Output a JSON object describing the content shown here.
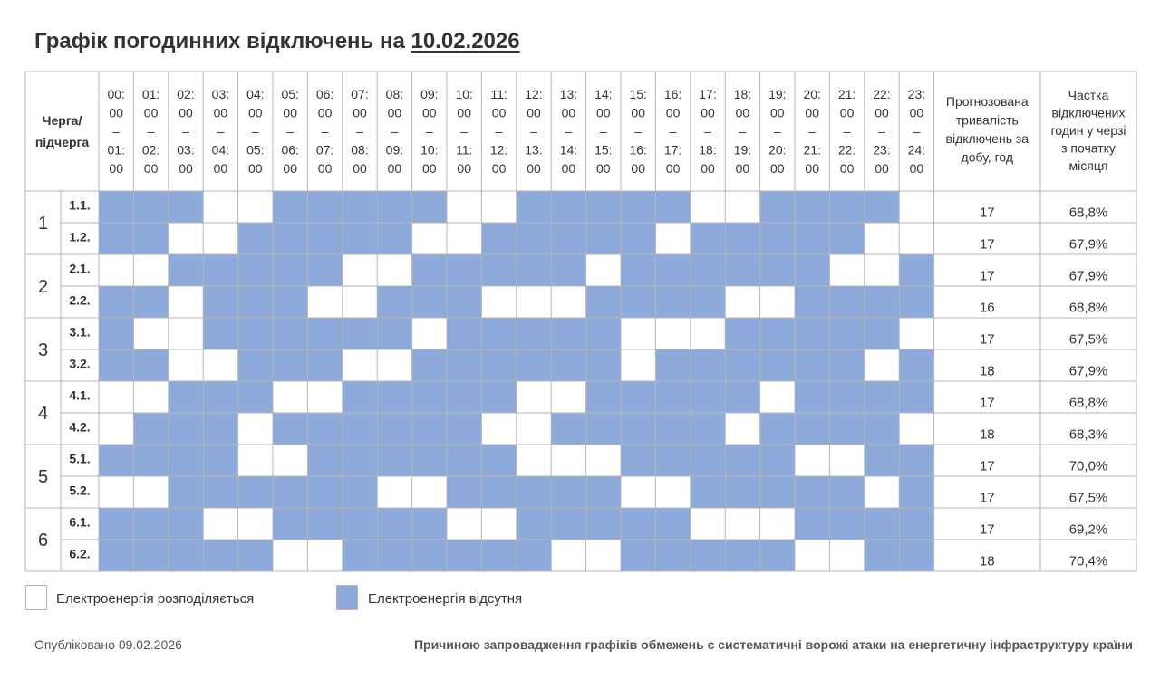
{
  "title": {
    "prefix": "Графік погодинних відключень на",
    "date": "10.02.2026"
  },
  "colors": {
    "off": "#8eaadb",
    "on": "#ffffff",
    "border": "#b5b5b5"
  },
  "chart_data": {
    "type": "table",
    "header": {
      "queue": [
        "Черга/",
        "підчерга"
      ],
      "duration": [
        "Прогнозована",
        "тривалість",
        "відключень за",
        "добу, год"
      ],
      "share": [
        "Частка",
        "відключених",
        "годин у черзі",
        "з початку",
        "місяця"
      ]
    },
    "hours": [
      [
        "00:",
        "00",
        "–",
        "01:",
        "00"
      ],
      [
        "01:",
        "00",
        "–",
        "02:",
        "00"
      ],
      [
        "02:",
        "00",
        "–",
        "03:",
        "00"
      ],
      [
        "03:",
        "00",
        "–",
        "04:",
        "00"
      ],
      [
        "04:",
        "00",
        "–",
        "05:",
        "00"
      ],
      [
        "05:",
        "00",
        "–",
        "06:",
        "00"
      ],
      [
        "06:",
        "00",
        "–",
        "07:",
        "00"
      ],
      [
        "07:",
        "00",
        "–",
        "08:",
        "00"
      ],
      [
        "08:",
        "00",
        "–",
        "09:",
        "00"
      ],
      [
        "09:",
        "00",
        "–",
        "10:",
        "00"
      ],
      [
        "10:",
        "00",
        "–",
        "11:",
        "00"
      ],
      [
        "11:",
        "00",
        "–",
        "12:",
        "00"
      ],
      [
        "12:",
        "00",
        "–",
        "13:",
        "00"
      ],
      [
        "13:",
        "00",
        "–",
        "14:",
        "00"
      ],
      [
        "14:",
        "00",
        "–",
        "15:",
        "00"
      ],
      [
        "15:",
        "00",
        "–",
        "16:",
        "00"
      ],
      [
        "16:",
        "00",
        "–",
        "17:",
        "00"
      ],
      [
        "17:",
        "00",
        "–",
        "18:",
        "00"
      ],
      [
        "18:",
        "00",
        "–",
        "19:",
        "00"
      ],
      [
        "19:",
        "00",
        "–",
        "20:",
        "00"
      ],
      [
        "20:",
        "00",
        "–",
        "21:",
        "00"
      ],
      [
        "21:",
        "00",
        "–",
        "22:",
        "00"
      ],
      [
        "22:",
        "00",
        "–",
        "23:",
        "00"
      ],
      [
        "23:",
        "00",
        "–",
        "24:",
        "00"
      ]
    ],
    "groups": [
      {
        "label": "1",
        "rows": [
          {
            "sub": "1.1.",
            "hours": [
              1,
              1,
              1,
              0,
              0,
              1,
              1,
              1,
              1,
              1,
              0,
              0,
              1,
              1,
              1,
              1,
              1,
              0,
              0,
              1,
              1,
              1,
              1,
              0
            ],
            "duration": "17",
            "share": "68,8%"
          },
          {
            "sub": "1.2.",
            "hours": [
              1,
              1,
              0,
              0,
              1,
              1,
              1,
              1,
              1,
              0,
              0,
              1,
              1,
              1,
              1,
              1,
              0,
              1,
              1,
              1,
              1,
              1,
              0,
              0
            ],
            "duration": "17",
            "share": "67,9%"
          }
        ]
      },
      {
        "label": "2",
        "rows": [
          {
            "sub": "2.1.",
            "hours": [
              0,
              0,
              1,
              1,
              1,
              1,
              1,
              0,
              0,
              1,
              1,
              1,
              1,
              1,
              0,
              1,
              1,
              1,
              1,
              1,
              1,
              0,
              0,
              1
            ],
            "duration": "17",
            "share": "67,9%"
          },
          {
            "sub": "2.2.",
            "hours": [
              1,
              1,
              0,
              1,
              1,
              1,
              0,
              0,
              1,
              1,
              1,
              0,
              0,
              0,
              1,
              1,
              1,
              1,
              0,
              0,
              1,
              1,
              1,
              1
            ],
            "duration": "16",
            "share": "68,8%"
          }
        ]
      },
      {
        "label": "3",
        "rows": [
          {
            "sub": "3.1.",
            "hours": [
              1,
              0,
              0,
              1,
              1,
              1,
              1,
              1,
              1,
              0,
              1,
              1,
              1,
              1,
              1,
              0,
              0,
              0,
              1,
              1,
              1,
              1,
              1,
              0
            ],
            "duration": "17",
            "share": "67,5%"
          },
          {
            "sub": "3.2.",
            "hours": [
              1,
              1,
              0,
              0,
              1,
              1,
              1,
              0,
              0,
              1,
              1,
              1,
              1,
              1,
              1,
              0,
              1,
              1,
              1,
              1,
              1,
              1,
              0,
              1
            ],
            "duration": "18",
            "share": "67,9%"
          }
        ]
      },
      {
        "label": "4",
        "rows": [
          {
            "sub": "4.1.",
            "hours": [
              0,
              0,
              1,
              1,
              1,
              0,
              0,
              1,
              1,
              1,
              1,
              1,
              0,
              0,
              1,
              1,
              1,
              1,
              1,
              0,
              1,
              1,
              1,
              1
            ],
            "duration": "17",
            "share": "68,8%"
          },
          {
            "sub": "4.2.",
            "hours": [
              0,
              1,
              1,
              1,
              0,
              1,
              1,
              1,
              1,
              1,
              1,
              0,
              0,
              1,
              1,
              1,
              1,
              1,
              0,
              1,
              1,
              1,
              1,
              0
            ],
            "duration": "18",
            "share": "68,3%"
          }
        ]
      },
      {
        "label": "5",
        "rows": [
          {
            "sub": "5.1.",
            "hours": [
              1,
              1,
              1,
              1,
              0,
              0,
              1,
              1,
              1,
              1,
              1,
              1,
              0,
              0,
              0,
              1,
              1,
              1,
              1,
              1,
              0,
              0,
              1,
              1
            ],
            "duration": "17",
            "share": "70,0%"
          },
          {
            "sub": "5.2.",
            "hours": [
              0,
              0,
              1,
              1,
              1,
              1,
              1,
              1,
              0,
              0,
              1,
              1,
              1,
              1,
              1,
              0,
              0,
              1,
              1,
              1,
              1,
              1,
              0,
              1
            ],
            "duration": "17",
            "share": "67,5%"
          }
        ]
      },
      {
        "label": "6",
        "rows": [
          {
            "sub": "6.1.",
            "hours": [
              1,
              1,
              1,
              0,
              0,
              1,
              1,
              1,
              1,
              1,
              0,
              0,
              1,
              1,
              1,
              1,
              1,
              0,
              0,
              0,
              1,
              1,
              1,
              1
            ],
            "duration": "17",
            "share": "69,2%"
          },
          {
            "sub": "6.2.",
            "hours": [
              1,
              1,
              1,
              1,
              1,
              0,
              0,
              1,
              1,
              1,
              1,
              1,
              1,
              0,
              0,
              1,
              1,
              1,
              1,
              1,
              0,
              0,
              1,
              1
            ],
            "duration": "18",
            "share": "70,4%"
          }
        ]
      }
    ]
  },
  "legend": {
    "on": "Електроенергія розподіляється",
    "off": "Електроенергія відсутня"
  },
  "footer": {
    "published": "Опубліковано 09.02.2026",
    "reason": "Причиною запровадження графіків обмежень є систематичні ворожі атаки на енергетичну інфраструктуру країни"
  }
}
